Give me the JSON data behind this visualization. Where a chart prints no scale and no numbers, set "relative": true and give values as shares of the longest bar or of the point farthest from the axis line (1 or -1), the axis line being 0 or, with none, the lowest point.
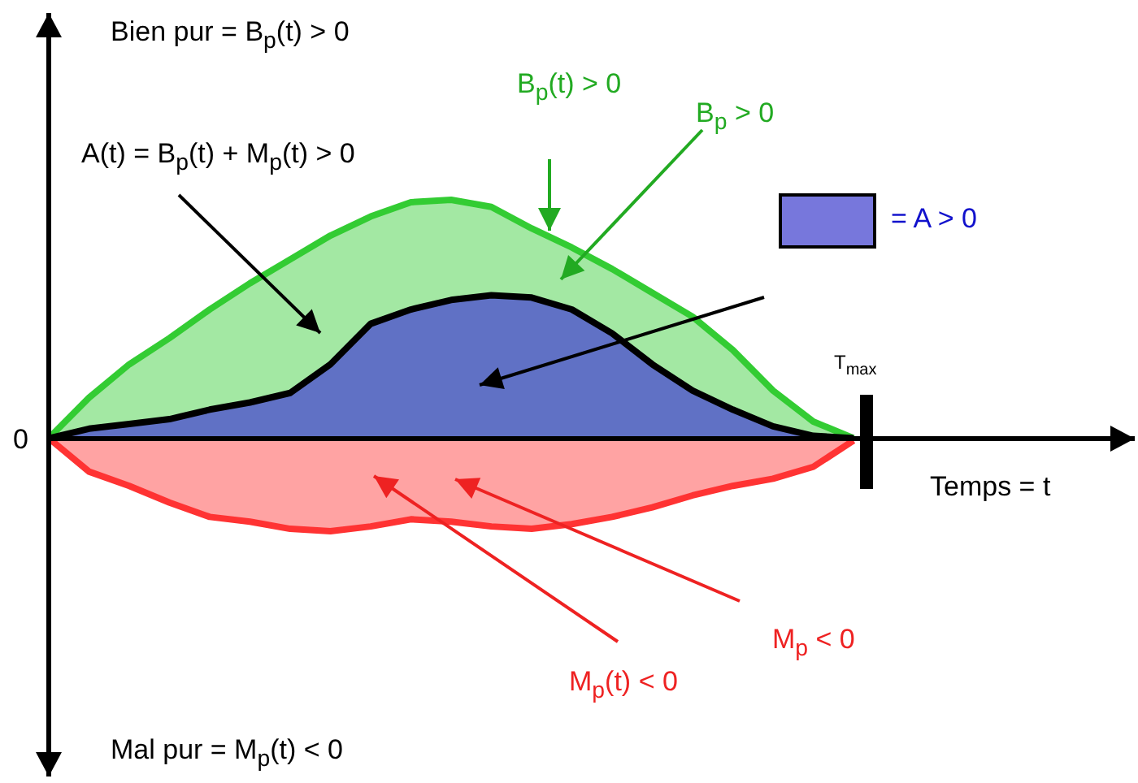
{
  "chart_data": {
    "type": "area",
    "relative": true,
    "xlabel": "Temps = t",
    "categories": [
      null,
      null,
      null,
      null,
      null,
      null,
      null,
      null,
      null,
      null,
      null,
      null,
      null,
      null,
      null,
      null,
      null,
      null,
      null,
      null,
      null
    ],
    "series": [
      {
        "color": "#33cc33",
        "values": [
          0,
          0.17,
          0.31,
          0.42,
          0.54,
          0.65,
          0.75,
          0.85,
          0.93,
          0.99,
          1,
          0.97,
          0.88,
          0.8,
          0.71,
          0.61,
          0.51,
          0.37,
          0.2,
          0.07,
          0
        ]
      },
      {
        "color": "#4a4ad0",
        "values": [
          0,
          0.04,
          0.06,
          0.08,
          0.12,
          0.15,
          0.19,
          0.31,
          0.48,
          0.54,
          0.58,
          0.6,
          0.59,
          0.54,
          0.44,
          0.31,
          0.2,
          0.12,
          0.05,
          0.01,
          0
        ]
      },
      {
        "color": "#ff3333",
        "values": [
          0,
          -0.14,
          -0.2,
          -0.27,
          -0.33,
          -0.35,
          -0.38,
          -0.39,
          -0.37,
          -0.34,
          -0.35,
          -0.37,
          -0.38,
          -0.36,
          -0.33,
          -0.29,
          -0.24,
          -0.2,
          -0.17,
          -0.12,
          -0.01
        ]
      }
    ],
    "annotations": [
      "Bien pur = B$_{p}$(t) > 0",
      "B$_{p}$(t) > 0",
      "B$_{p}$ > 0",
      "A(t) = B$_{p}$(t) + M$_{p}$(t) > 0",
      "= A > 0",
      "T$_{max}$",
      "0",
      "M$_{p}$ < 0",
      "M$_{p}$(t) < 0",
      "Mal pur = M$_{p}$(t) < 0"
    ]
  }
}
